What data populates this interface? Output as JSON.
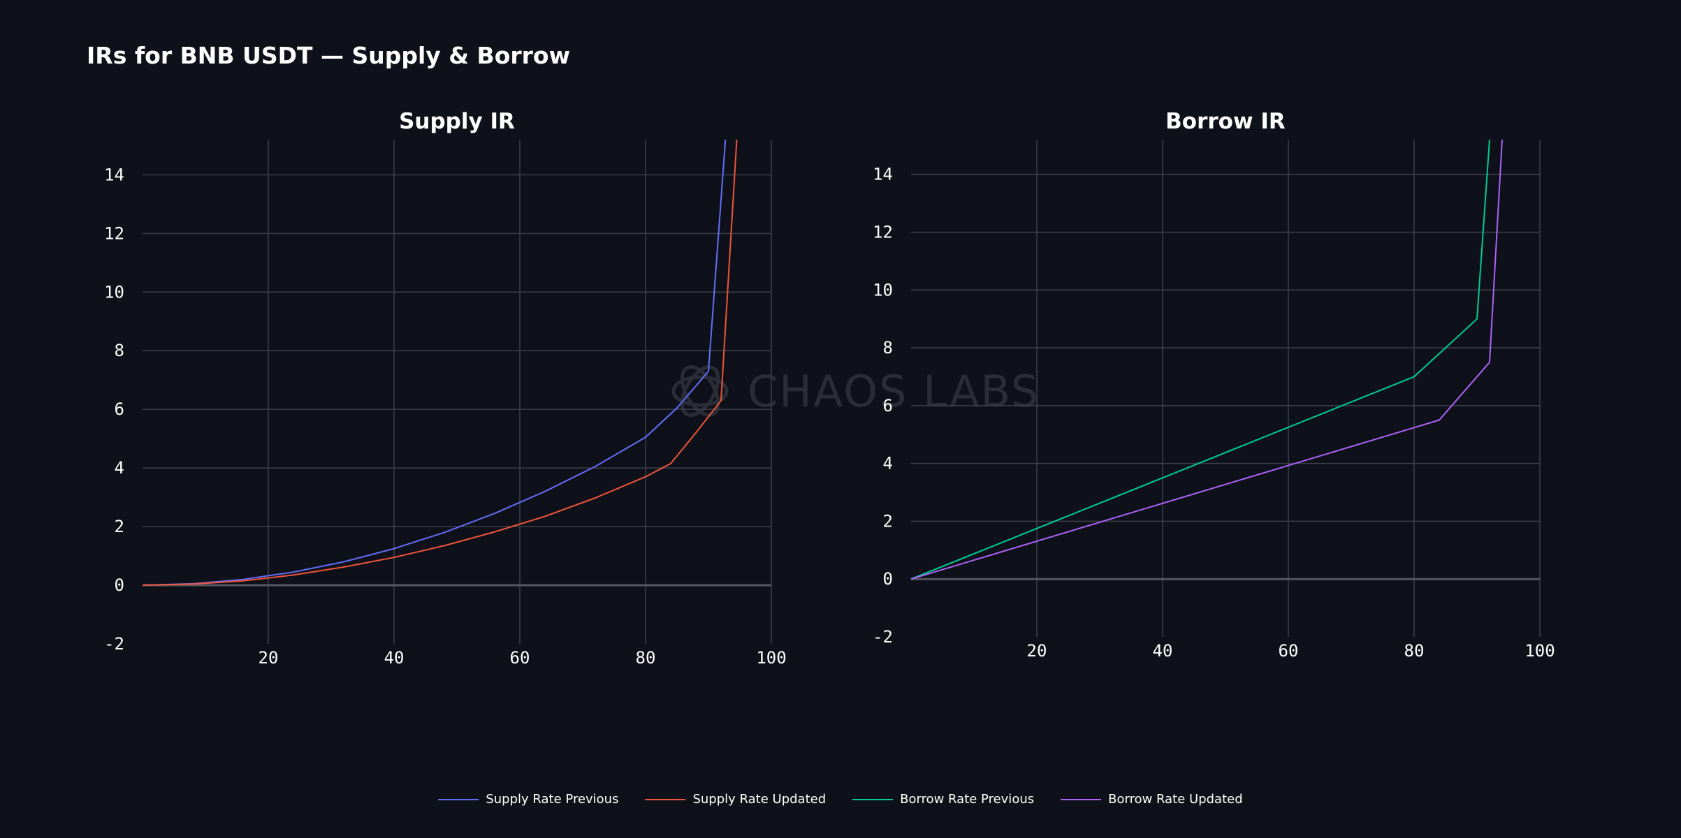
{
  "title": "IRs for BNB USDT — Supply & Borrow",
  "watermark": "CHAOS LABS",
  "chart_data": [
    {
      "type": "line",
      "title": "Supply IR",
      "xlabel": "",
      "ylabel": "",
      "xlim": [
        0,
        100
      ],
      "ylim": [
        -2,
        15.2
      ],
      "xticks": [
        20,
        40,
        60,
        80,
        100
      ],
      "yticks": [
        -2,
        0,
        2,
        4,
        6,
        8,
        10,
        12,
        14
      ],
      "grid": true,
      "series": [
        {
          "name": "Supply Rate Previous",
          "color": "#636efa",
          "x": [
            0,
            8,
            16,
            24,
            32,
            40,
            48,
            56,
            64,
            72,
            80,
            85,
            90,
            92.7
          ],
          "y": [
            0,
            0.05,
            0.2,
            0.45,
            0.8,
            1.25,
            1.8,
            2.45,
            3.2,
            4.05,
            5.05,
            6.05,
            7.3,
            15.2
          ]
        },
        {
          "name": "Supply Rate Updated",
          "color": "#ef553b",
          "x": [
            0,
            8,
            16,
            24,
            32,
            40,
            48,
            56,
            64,
            72,
            80,
            84,
            88,
            92,
            94.5
          ],
          "y": [
            0,
            0.04,
            0.15,
            0.35,
            0.62,
            0.95,
            1.35,
            1.82,
            2.35,
            2.98,
            3.7,
            4.15,
            5.2,
            6.3,
            15.2
          ]
        }
      ]
    },
    {
      "type": "line",
      "title": "Borrow IR",
      "xlabel": "",
      "ylabel": "",
      "xlim": [
        0,
        100
      ],
      "ylim": [
        -2,
        15.2
      ],
      "xticks": [
        20,
        40,
        60,
        80,
        100
      ],
      "yticks": [
        -2,
        0,
        2,
        4,
        6,
        8,
        10,
        12,
        14
      ],
      "grid": true,
      "series": [
        {
          "name": "Borrow Rate Previous",
          "color": "#00cc96",
          "x": [
            0,
            80,
            90,
            92
          ],
          "y": [
            0,
            7,
            9,
            15.2
          ]
        },
        {
          "name": "Borrow Rate Updated",
          "color": "#ab63fa",
          "x": [
            0,
            84,
            92,
            94
          ],
          "y": [
            0,
            5.5,
            7.5,
            15.2
          ]
        }
      ]
    }
  ],
  "legend": [
    {
      "label": "Supply Rate Previous",
      "color": "#636efa"
    },
    {
      "label": "Supply Rate Updated",
      "color": "#ef553b"
    },
    {
      "label": "Borrow Rate Previous",
      "color": "#00cc96"
    },
    {
      "label": "Borrow Rate Updated",
      "color": "#ab63fa"
    }
  ]
}
